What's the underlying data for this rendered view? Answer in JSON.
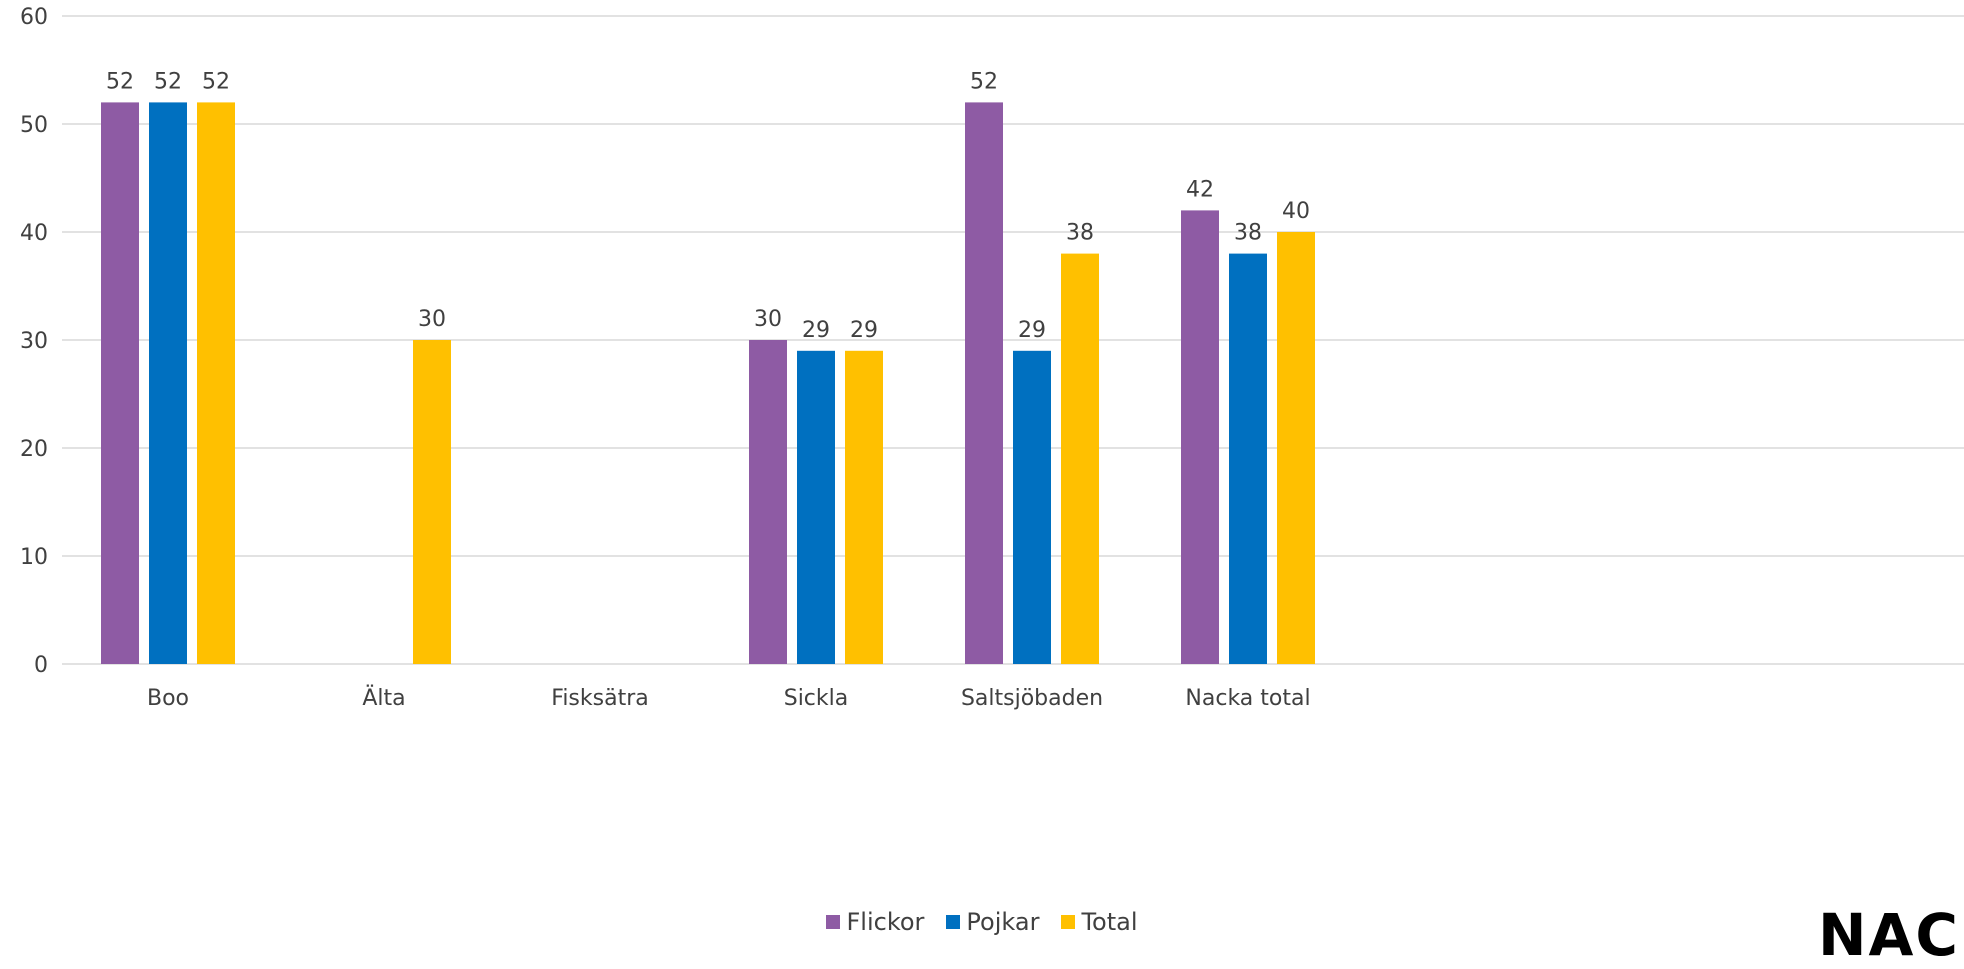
{
  "chart_data": {
    "type": "bar",
    "title": "",
    "xlabel": "",
    "ylabel": "",
    "categories": [
      "Boo",
      "Älta",
      "Fisksätra",
      "Sickla",
      "Saltsjöbaden",
      "Nacka total"
    ],
    "series": [
      {
        "name": "Flickor",
        "color": "#8e5ba4",
        "values": [
          52,
          null,
          null,
          30,
          52,
          42
        ]
      },
      {
        "name": "Pojkar",
        "color": "#0070c0",
        "values": [
          52,
          null,
          null,
          29,
          29,
          38
        ]
      },
      {
        "name": "Total",
        "color": "#ffc000",
        "values": [
          52,
          30,
          null,
          29,
          38,
          40
        ]
      }
    ],
    "ylim": [
      0,
      60
    ],
    "yticks": [
      0,
      10,
      20,
      30,
      40,
      50,
      60
    ],
    "grid": true,
    "legend": "bottom-center"
  },
  "logo": {
    "text": "NACKA"
  }
}
